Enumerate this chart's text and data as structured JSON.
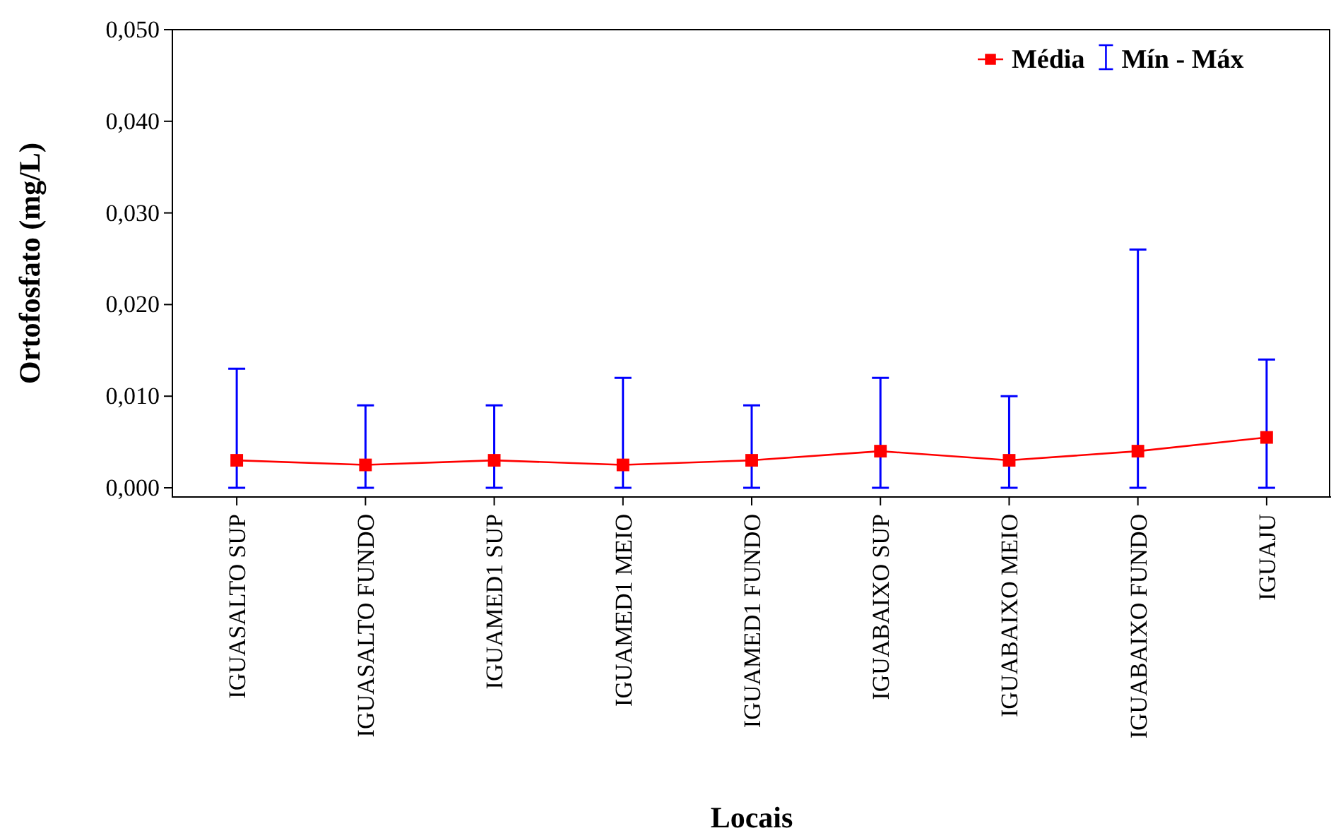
{
  "chart_data": {
    "type": "line",
    "xlabel": "Locais",
    "ylabel": "Ortofosfato (mg/L)",
    "categories": [
      "IGUASALTO SUP",
      "IGUASALTO FUNDO",
      "IGUAMED1 SUP",
      "IGUAMED1 MEIO",
      "IGUAMED1 FUNDO",
      "IGUABAIXO SUP",
      "IGUABAIXO MEIO",
      "IGUABAIXO FUNDO",
      "IGUAJU"
    ],
    "series": [
      {
        "name": "Média",
        "color": "#ff0000",
        "values": [
          0.003,
          0.0025,
          0.003,
          0.0025,
          0.003,
          0.004,
          0.003,
          0.004,
          0.0055
        ],
        "errors": [
          [
            0,
            0.013
          ],
          [
            0,
            0.009
          ],
          [
            0,
            0.009
          ],
          [
            0,
            0.012
          ],
          [
            0,
            0.009
          ],
          [
            0,
            0.012
          ],
          [
            0,
            0.01
          ],
          [
            0,
            0.026
          ],
          [
            0,
            0.014
          ]
        ]
      }
    ],
    "annotations": [
      "Mín - Máx"
    ],
    "ylim": [
      -0.001,
      0.05
    ],
    "yticks": [
      {
        "value": 0,
        "label": "0,000"
      },
      {
        "value": 0.01,
        "label": "0,010"
      },
      {
        "value": 0.02,
        "label": "0,020"
      },
      {
        "value": 0.03,
        "label": "0,030"
      },
      {
        "value": 0.04,
        "label": "0,040"
      },
      {
        "value": 0.05,
        "label": "0,050"
      }
    ],
    "marker": "square",
    "line_style": "solid",
    "legend": "top right",
    "grid": false
  }
}
